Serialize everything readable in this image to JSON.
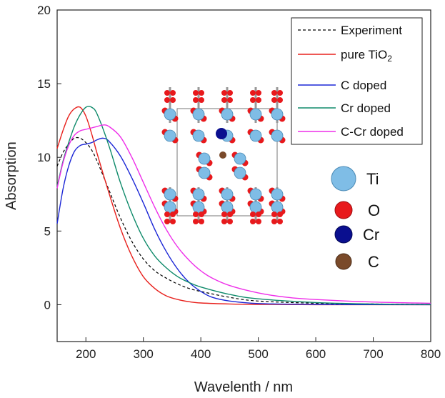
{
  "chart_data": {
    "type": "line",
    "xlabel": "Wavelenth / nm",
    "ylabel": "Absorption",
    "xlim": [
      150,
      800
    ],
    "ylim": [
      -2.5,
      20
    ],
    "xticks": [
      200,
      300,
      400,
      500,
      600,
      700,
      800
    ],
    "yticks": [
      0,
      5,
      10,
      15,
      20
    ],
    "grid": false,
    "legend_position": "top-right",
    "series": [
      {
        "name": "Experiment",
        "color": "#000000",
        "dash": true,
        "x": [
          150,
          160,
          170,
          180,
          190,
          200,
          210,
          220,
          240,
          260,
          280,
          300,
          320,
          340,
          360,
          380,
          400,
          450,
          500,
          600,
          700,
          800
        ],
        "y": [
          9.4,
          10.3,
          10.9,
          11.3,
          11.3,
          11.0,
          10.5,
          9.7,
          7.8,
          5.9,
          4.3,
          3.1,
          2.3,
          1.8,
          1.4,
          1.1,
          0.9,
          0.5,
          0.25,
          0.1,
          0.05,
          0.02
        ]
      },
      {
        "name": "pure TiO2",
        "name_base": "pure TiO",
        "name_sub": "2",
        "color": "#e8211d",
        "dash": false,
        "x": [
          150,
          160,
          170,
          180,
          190,
          200,
          210,
          220,
          240,
          260,
          280,
          300,
          320,
          340,
          360,
          380,
          400,
          450,
          500,
          600,
          800
        ],
        "y": [
          10.6,
          11.8,
          12.8,
          13.3,
          13.4,
          12.8,
          11.6,
          10.2,
          7.6,
          5.2,
          3.3,
          1.9,
          1.1,
          0.6,
          0.35,
          0.2,
          0.12,
          0.05,
          0.02,
          0.0,
          0.0
        ]
      },
      {
        "name": "C doped",
        "color": "#1c27d6",
        "dash": false,
        "x": [
          150,
          160,
          170,
          180,
          190,
          200,
          210,
          220,
          230,
          240,
          260,
          280,
          300,
          320,
          340,
          360,
          380,
          400,
          420,
          450,
          500,
          600,
          800
        ],
        "y": [
          5.5,
          7.8,
          9.4,
          10.4,
          10.8,
          10.9,
          11.0,
          11.2,
          11.3,
          11.1,
          10.1,
          8.6,
          6.9,
          5.1,
          3.6,
          2.4,
          1.5,
          0.9,
          0.5,
          0.25,
          0.08,
          0.02,
          0.0
        ]
      },
      {
        "name": "Cr doped",
        "color": "#0e8a6a",
        "dash": false,
        "x": [
          150,
          160,
          170,
          180,
          190,
          200,
          210,
          220,
          240,
          260,
          280,
          300,
          320,
          340,
          360,
          380,
          400,
          450,
          500,
          600,
          700,
          800
        ],
        "y": [
          8.0,
          9.7,
          11.0,
          12.1,
          12.9,
          13.4,
          13.4,
          12.9,
          10.8,
          8.3,
          6.2,
          4.5,
          3.3,
          2.5,
          1.9,
          1.5,
          1.2,
          0.7,
          0.4,
          0.15,
          0.05,
          0.02
        ]
      },
      {
        "name": "C-Cr doped",
        "color": "#ee2ee9",
        "dash": false,
        "x": [
          150,
          160,
          170,
          180,
          190,
          200,
          210,
          220,
          230,
          240,
          260,
          280,
          300,
          320,
          340,
          360,
          380,
          400,
          420,
          450,
          500,
          550,
          600,
          700,
          800
        ],
        "y": [
          7.9,
          9.6,
          10.8,
          11.5,
          11.8,
          11.9,
          12.0,
          12.1,
          12.2,
          12.1,
          11.4,
          10.0,
          8.3,
          6.6,
          5.1,
          3.9,
          3.0,
          2.3,
          1.8,
          1.3,
          0.8,
          0.5,
          0.35,
          0.18,
          0.1
        ]
      }
    ]
  },
  "inset": {
    "atom_legend": [
      {
        "label": "Ti",
        "color": "#7fbde6"
      },
      {
        "label": "O",
        "color": "#e8191c"
      },
      {
        "label": "Cr",
        "color": "#0a0f8f"
      },
      {
        "label": "C",
        "color": "#7a4a2a"
      }
    ]
  }
}
